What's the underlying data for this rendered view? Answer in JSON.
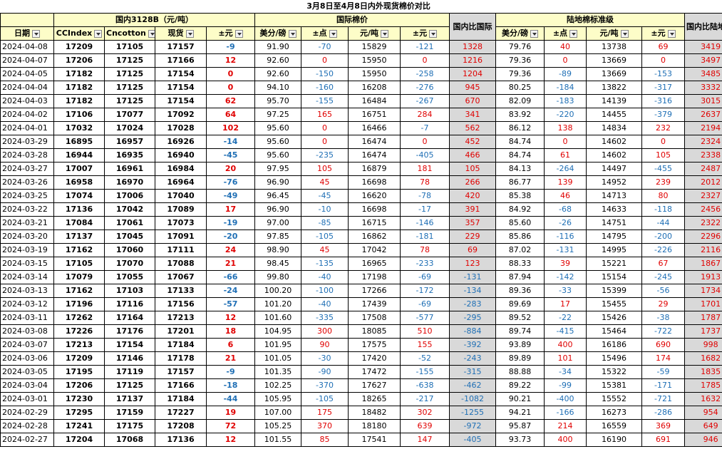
{
  "title": "3月8日至4月8日内外现货棉价对比",
  "groups": {
    "domestic": "国内3128B（元/吨）",
    "international": "国际棉价",
    "ratio1": "国内比国际",
    "landbased": "陆地棉标准级",
    "ratio2": "国内比陆地棉标准级"
  },
  "headers": [
    "日期",
    "CCIndex",
    "Cncotton",
    "现货",
    "±元",
    "美分/磅",
    "±点",
    "元/吨",
    "±元",
    "美分/磅",
    "±点",
    "元/吨",
    "±元"
  ],
  "rows": [
    [
      "2024-04-08",
      "17209",
      "17105",
      "17157",
      "-9",
      "91.90",
      "-70",
      "15829",
      "-121",
      "1328",
      "79.76",
      "40",
      "13738",
      "69",
      "3419"
    ],
    [
      "2024-04-07",
      "17206",
      "17125",
      "17166",
      "12",
      "92.60",
      "0",
      "15950",
      "0",
      "1216",
      "79.36",
      "0",
      "13669",
      "0",
      "3497"
    ],
    [
      "2024-04-05",
      "17182",
      "17125",
      "17154",
      "0",
      "92.60",
      "-150",
      "15950",
      "-258",
      "1204",
      "79.36",
      "-89",
      "13669",
      "-153",
      "3485"
    ],
    [
      "2024-04-04",
      "17182",
      "17125",
      "17154",
      "0",
      "94.10",
      "-160",
      "16208",
      "-276",
      "945",
      "80.25",
      "-184",
      "13822",
      "-317",
      "3332"
    ],
    [
      "2024-04-03",
      "17182",
      "17125",
      "17154",
      "62",
      "95.70",
      "-155",
      "16484",
      "-267",
      "670",
      "82.09",
      "-183",
      "14139",
      "-316",
      "3015"
    ],
    [
      "2024-04-02",
      "17106",
      "17077",
      "17092",
      "64",
      "97.25",
      "165",
      "16751",
      "284",
      "341",
      "83.92",
      "-220",
      "14455",
      "-379",
      "2637"
    ],
    [
      "2024-04-01",
      "17032",
      "17024",
      "17028",
      "102",
      "95.60",
      "0",
      "16466",
      "-7",
      "562",
      "86.12",
      "138",
      "14834",
      "232",
      "2194"
    ],
    [
      "2024-03-29",
      "16895",
      "16957",
      "16926",
      "-14",
      "95.60",
      "0",
      "16474",
      "0",
      "452",
      "84.74",
      "0",
      "14602",
      "0",
      "2324"
    ],
    [
      "2024-03-28",
      "16944",
      "16935",
      "16940",
      "-45",
      "95.60",
      "-235",
      "16474",
      "-405",
      "466",
      "84.74",
      "61",
      "14602",
      "105",
      "2338"
    ],
    [
      "2024-03-27",
      "17007",
      "16961",
      "16984",
      "20",
      "97.95",
      "105",
      "16879",
      "181",
      "105",
      "84.13",
      "-264",
      "14497",
      "-455",
      "2487"
    ],
    [
      "2024-03-26",
      "16958",
      "16970",
      "16964",
      "-76",
      "96.90",
      "45",
      "16698",
      "78",
      "266",
      "86.77",
      "139",
      "14952",
      "239",
      "2012"
    ],
    [
      "2024-03-25",
      "17074",
      "17006",
      "17040",
      "-49",
      "96.45",
      "-45",
      "16620",
      "-78",
      "420",
      "85.38",
      "46",
      "14713",
      "80",
      "2327"
    ],
    [
      "2024-03-22",
      "17136",
      "17042",
      "17089",
      "17",
      "96.90",
      "-10",
      "16698",
      "-17",
      "391",
      "84.92",
      "-68",
      "14633",
      "-118",
      "2456"
    ],
    [
      "2024-03-21",
      "17084",
      "17061",
      "17073",
      "-19",
      "97.00",
      "-85",
      "16715",
      "-146",
      "357",
      "85.60",
      "-26",
      "14751",
      "-44",
      "2322"
    ],
    [
      "2024-03-20",
      "17137",
      "17045",
      "17091",
      "-20",
      "97.85",
      "-105",
      "16862",
      "-181",
      "229",
      "85.86",
      "-116",
      "14795",
      "-200",
      "2296"
    ],
    [
      "2024-03-19",
      "17162",
      "17060",
      "17111",
      "24",
      "98.90",
      "45",
      "17042",
      "78",
      "69",
      "87.02",
      "-131",
      "14995",
      "-226",
      "2116"
    ],
    [
      "2024-03-15",
      "17105",
      "17070",
      "17088",
      "21",
      "98.45",
      "-135",
      "16965",
      "-233",
      "123",
      "88.33",
      "39",
      "15221",
      "67",
      "1867"
    ],
    [
      "2024-03-14",
      "17079",
      "17055",
      "17067",
      "-66",
      "99.80",
      "-40",
      "17198",
      "-69",
      "-131",
      "87.94",
      "-142",
      "15154",
      "-245",
      "1913"
    ],
    [
      "2024-03-13",
      "17162",
      "17103",
      "17133",
      "-24",
      "100.20",
      "-100",
      "17266",
      "-172",
      "-134",
      "89.36",
      "-33",
      "15399",
      "-56",
      "1734"
    ],
    [
      "2024-03-12",
      "17196",
      "17116",
      "17156",
      "-57",
      "101.20",
      "-40",
      "17439",
      "-69",
      "-283",
      "89.69",
      "17",
      "15455",
      "29",
      "1701"
    ],
    [
      "2024-03-11",
      "17262",
      "17164",
      "17213",
      "12",
      "101.60",
      "-335",
      "17508",
      "-577",
      "-295",
      "89.52",
      "-22",
      "15426",
      "-38",
      "1787"
    ],
    [
      "2024-03-08",
      "17226",
      "17176",
      "17201",
      "18",
      "104.95",
      "300",
      "18085",
      "510",
      "-884",
      "89.74",
      "-415",
      "15464",
      "-722",
      "1737"
    ],
    [
      "2024-03-07",
      "17213",
      "17154",
      "17184",
      "6",
      "101.95",
      "90",
      "17575",
      "155",
      "-392",
      "93.89",
      "400",
      "16186",
      "690",
      "998"
    ],
    [
      "2024-03-06",
      "17209",
      "17146",
      "17178",
      "21",
      "101.05",
      "-30",
      "17420",
      "-52",
      "-243",
      "89.89",
      "101",
      "15496",
      "174",
      "1682"
    ],
    [
      "2024-03-05",
      "17195",
      "17119",
      "17157",
      "-9",
      "101.35",
      "-90",
      "17472",
      "-155",
      "-315",
      "88.88",
      "-34",
      "15322",
      "-59",
      "1835"
    ],
    [
      "2024-03-04",
      "17206",
      "17125",
      "17166",
      "-18",
      "102.25",
      "-370",
      "17627",
      "-638",
      "-462",
      "89.22",
      "-99",
      "15381",
      "-171",
      "1785"
    ],
    [
      "2024-03-01",
      "17230",
      "17137",
      "17184",
      "-44",
      "105.95",
      "-105",
      "18265",
      "-217",
      "-1082",
      "90.21",
      "-400",
      "15552",
      "-721",
      "1632"
    ],
    [
      "2024-02-29",
      "17295",
      "17159",
      "17227",
      "19",
      "107.00",
      "175",
      "18482",
      "302",
      "-1255",
      "94.21",
      "-166",
      "16273",
      "-286",
      "954"
    ],
    [
      "2024-02-28",
      "17241",
      "17175",
      "17208",
      "72",
      "105.25",
      "370",
      "18180",
      "639",
      "-972",
      "95.87",
      "214",
      "16559",
      "369",
      "649"
    ],
    [
      "2024-02-27",
      "17204",
      "17068",
      "17136",
      "12",
      "101.55",
      "85",
      "17541",
      "147",
      "-405",
      "93.73",
      "400",
      "16190",
      "691",
      "946"
    ]
  ]
}
